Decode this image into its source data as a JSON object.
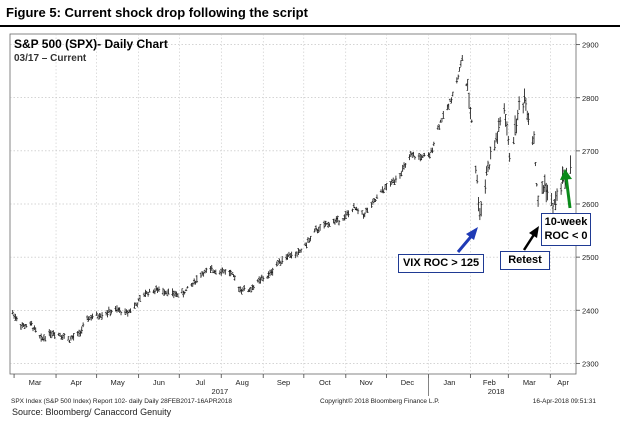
{
  "figure": {
    "title": "Figure 5: Current shock drop following the script",
    "source": "Source: Bloomberg/ Canaccord Genuity"
  },
  "chart_data": {
    "type": "line",
    "title": "S&P 500 (SPX)- Daily Chart",
    "subtitle": "03/17 – Current",
    "ylim": [
      2280,
      2920
    ],
    "yticks": [
      2300,
      2400,
      2500,
      2600,
      2700,
      2800,
      2900
    ],
    "ytick_labels": [
      "2300",
      "2400",
      "2500",
      "2600",
      "2700",
      "2800",
      "2900"
    ],
    "x_months": [
      "Mar",
      "Apr",
      "May",
      "Jun",
      "Jul",
      "Aug",
      "Sep",
      "Oct",
      "Nov",
      "Dec",
      "Jan",
      "Feb",
      "Mar",
      "Apr"
    ],
    "x_years": [
      "2017",
      "2018"
    ],
    "grid": true,
    "series": [
      {
        "x": [
          "2017-02-28",
          "2017-03-07",
          "2017-03-14",
          "2017-03-21",
          "2017-03-28",
          "2017-04-04",
          "2017-04-11",
          "2017-04-18",
          "2017-04-25",
          "2017-05-02",
          "2017-05-09",
          "2017-05-16",
          "2017-05-23",
          "2017-05-30",
          "2017-06-06",
          "2017-06-13",
          "2017-06-20",
          "2017-06-27",
          "2017-07-04",
          "2017-07-11",
          "2017-07-18",
          "2017-07-25",
          "2017-08-01",
          "2017-08-08",
          "2017-08-15",
          "2017-08-22",
          "2017-08-29",
          "2017-09-05",
          "2017-09-12",
          "2017-09-19",
          "2017-09-26",
          "2017-10-03",
          "2017-10-10",
          "2017-10-17",
          "2017-10-24",
          "2017-10-31",
          "2017-11-07",
          "2017-11-14",
          "2017-11-21",
          "2017-11-28",
          "2017-12-05",
          "2017-12-12",
          "2017-12-19",
          "2017-12-26",
          "2018-01-02",
          "2018-01-09",
          "2018-01-16",
          "2018-01-23",
          "2018-01-26",
          "2018-02-02",
          "2018-02-06",
          "2018-02-08",
          "2018-02-13",
          "2018-02-20",
          "2018-02-26",
          "2018-03-02",
          "2018-03-09",
          "2018-03-13",
          "2018-03-20",
          "2018-03-23",
          "2018-03-28",
          "2018-04-03",
          "2018-04-09",
          "2018-04-16"
        ],
        "y": [
          2395,
          2370,
          2372,
          2345,
          2358,
          2355,
          2345,
          2355,
          2385,
          2390,
          2396,
          2400,
          2395,
          2410,
          2432,
          2438,
          2437,
          2430,
          2432,
          2450,
          2470,
          2475,
          2475,
          2470,
          2440,
          2438,
          2455,
          2465,
          2490,
          2503,
          2505,
          2525,
          2550,
          2560,
          2568,
          2575,
          2592,
          2580,
          2600,
          2625,
          2640,
          2660,
          2690,
          2688,
          2690,
          2750,
          2785,
          2840,
          2875,
          2760,
          2640,
          2580,
          2660,
          2720,
          2780,
          2690,
          2780,
          2800,
          2720,
          2600,
          2640,
          2590,
          2640,
          2670
        ]
      }
    ],
    "annotations": [
      {
        "text": "VIX ROC > 125",
        "color": "#1f3ab5"
      },
      {
        "text": "Retest",
        "color": "#000000"
      },
      {
        "text": "10-week ROC < 0",
        "color": "#0a8a1a"
      }
    ],
    "footer": {
      "left": "SPX Index (S&P 500 Index) Report 102- daily  Daily 28FEB2017-16APR2018",
      "center": "Copyright© 2018 Bloomberg Finance L.P.",
      "right": "16-Apr-2018 09:51:31"
    }
  }
}
